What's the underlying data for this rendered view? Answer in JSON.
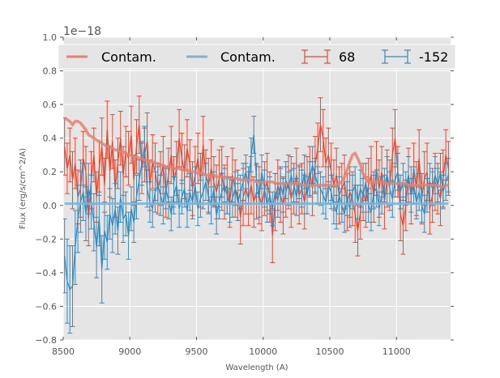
{
  "chart_data": {
    "type": "line",
    "title": "",
    "xlabel": "Wavelength (A)",
    "ylabel": "Flux (erg/s/cm^2/A)",
    "y_offset_label": "1e−18",
    "xlim": [
      8500,
      11406
    ],
    "ylim": [
      -0.8,
      1.0
    ],
    "x_ticks": [
      8500,
      9000,
      9500,
      10000,
      10500,
      11000
    ],
    "x_tick_labels": [
      "8500",
      "9000",
      "9500",
      "10000",
      "10500",
      "11000"
    ],
    "y_ticks": [
      -0.8,
      -0.6,
      -0.4,
      -0.2,
      0.0,
      0.2,
      0.4,
      0.6,
      0.8,
      1.0
    ],
    "y_tick_labels": [
      "−0.8",
      "−0.6",
      "−0.4",
      "−0.2",
      "0.0",
      "0.2",
      "0.4",
      "0.6",
      "0.8",
      "1.0"
    ],
    "grid": true,
    "legend_position": "top",
    "legend": [
      {
        "label": "Contam.",
        "kind": "line",
        "color": "#e8806e"
      },
      {
        "label": "Contam.",
        "kind": "line",
        "color": "#7eb3d6"
      },
      {
        "label": "68",
        "kind": "errorbar",
        "color": "#e24a33"
      },
      {
        "label": "-152",
        "kind": "errorbar",
        "color": "#348abd"
      }
    ],
    "x_start": 8510,
    "x_step": 20,
    "series": [
      {
        "name": "Contam.",
        "kind": "contam",
        "color": "#e8806e",
        "values": [
          0.52,
          0.51,
          0.5,
          0.48,
          0.5,
          0.5,
          0.49,
          0.47,
          0.45,
          0.42,
          0.41,
          0.4,
          0.39,
          0.38,
          0.37,
          0.36,
          0.35,
          0.35,
          0.34,
          0.33,
          0.33,
          0.32,
          0.32,
          0.31,
          0.3,
          0.3,
          0.29,
          0.29,
          0.28,
          0.28,
          0.27,
          0.27,
          0.26,
          0.26,
          0.25,
          0.25,
          0.24,
          0.24,
          0.23,
          0.23,
          0.23,
          0.22,
          0.22,
          0.22,
          0.21,
          0.21,
          0.21,
          0.2,
          0.2,
          0.2,
          0.19,
          0.19,
          0.19,
          0.18,
          0.18,
          0.18,
          0.18,
          0.17,
          0.17,
          0.17,
          0.17,
          0.16,
          0.16,
          0.16,
          0.16,
          0.16,
          0.15,
          0.15,
          0.15,
          0.15,
          0.15,
          0.15,
          0.14,
          0.14,
          0.14,
          0.14,
          0.14,
          0.14,
          0.14,
          0.13,
          0.13,
          0.13,
          0.13,
          0.13,
          0.13,
          0.13,
          0.13,
          0.13,
          0.13,
          0.12,
          0.12,
          0.12,
          0.12,
          0.12,
          0.12,
          0.12,
          0.12,
          0.12,
          0.12,
          0.12,
          0.12,
          0.12,
          0.12,
          0.13,
          0.14,
          0.17,
          0.21,
          0.26,
          0.3,
          0.31,
          0.28,
          0.24,
          0.19,
          0.16,
          0.14,
          0.14,
          0.14,
          0.14,
          0.14,
          0.14,
          0.14,
          0.13,
          0.13,
          0.13,
          0.13,
          0.13,
          0.13,
          0.13,
          0.13,
          0.12,
          0.12,
          0.12,
          0.12,
          0.12,
          0.12,
          0.12,
          0.12,
          0.12,
          0.12,
          0.12,
          0.12,
          0.11,
          0.11,
          0.12,
          0.12
        ]
      },
      {
        "name": "Contam.",
        "kind": "contam",
        "color": "#7eb3d6",
        "values": [
          0.01,
          0.01,
          0.01,
          0.01,
          0.01,
          0.01,
          0.01,
          0.01,
          0.01,
          0.01,
          0.01,
          0.01,
          0.01,
          0.01,
          0.01,
          0.01,
          0.01,
          0.01,
          0.01,
          0.01,
          0.01,
          0.01,
          0.01,
          0.01,
          0.01,
          0.01,
          0.01,
          0.01,
          0.01,
          0.01,
          0.01,
          0.01,
          0.01,
          0.01,
          0.01,
          0.01,
          0.01,
          0.01,
          0.01,
          0.01,
          0.01,
          0.01,
          0.01,
          0.01,
          0.01,
          0.01,
          0.01,
          0.01,
          0.01,
          0.01,
          0.01,
          0.01,
          0.01,
          0.01,
          0.01,
          0.01,
          0.01,
          0.01,
          0.01,
          0.01,
          0.01,
          0.01,
          0.01,
          0.01,
          0.01,
          0.01,
          0.01,
          0.01,
          0.01,
          0.01,
          0.01,
          0.01,
          0.01,
          0.01,
          0.01,
          0.01,
          0.01,
          0.01,
          0.01,
          0.01,
          0.01,
          0.01,
          0.01,
          0.01,
          0.01,
          0.01,
          0.01,
          0.01,
          0.01,
          0.01,
          0.01,
          0.01,
          0.01,
          0.01,
          0.01,
          0.01,
          0.01,
          0.01,
          0.01,
          0.01,
          0.01,
          0.01,
          0.01,
          0.01,
          0.01,
          0.01,
          0.01,
          0.01,
          0.01,
          0.01,
          0.01,
          0.01,
          0.01,
          0.01,
          0.01,
          0.01,
          0.01,
          0.01,
          0.01,
          0.01,
          0.01,
          0.01,
          0.01,
          0.01,
          0.01,
          0.01,
          0.01,
          0.01,
          0.01,
          0.01,
          0.01,
          0.01,
          0.01,
          0.01,
          0.01,
          0.01,
          0.01,
          0.01,
          0.01,
          0.01,
          0.01,
          0.01,
          0.01,
          0.01,
          0.01
        ]
      },
      {
        "name": "68",
        "kind": "errorbar",
        "color": "#e24a33",
        "values": [
          0.35,
          0.22,
          0.3,
          0.15,
          0.25,
          0.05,
          0.1,
          0.28,
          0.2,
          -0.08,
          0.15,
          0.3,
          0.05,
          0.22,
          0.35,
          0.12,
          0.45,
          0.2,
          0.38,
          0.1,
          0.25,
          0.4,
          0.18,
          0.32,
          0.28,
          0.42,
          0.15,
          0.35,
          0.48,
          0.22,
          0.3,
          0.38,
          0.12,
          0.26,
          0.2,
          0.1,
          0.16,
          0.24,
          0.08,
          0.18,
          0.3,
          0.14,
          0.22,
          0.4,
          0.28,
          0.2,
          0.34,
          0.24,
          0.1,
          0.18,
          0.28,
          0.15,
          0.36,
          0.18,
          0.12,
          0.22,
          0.14,
          0.08,
          0.16,
          0.2,
          0.08,
          0.12,
          0.02,
          0.18,
          0.1,
          0.06,
          -0.07,
          0.05,
          0.1,
          0.04,
          0.12,
          0.02,
          0.08,
          0.06,
          0.0,
          0.1,
          0.14,
          0.05,
          -0.18,
          0.02,
          0.12,
          0.06,
          0.0,
          0.08,
          0.14,
          0.04,
          0.1,
          0.18,
          0.06,
          0.1,
          0.02,
          0.12,
          0.2,
          0.1,
          0.24,
          0.34,
          0.48,
          0.4,
          0.25,
          0.3,
          0.2,
          0.12,
          0.18,
          0.06,
          0.1,
          0.14,
          0.02,
          0.08,
          0.04,
          -0.05,
          -0.15,
          -0.04,
          0.08,
          0.02,
          0.12,
          0.18,
          0.05,
          0.22,
          0.1,
          0.2,
          0.02,
          0.16,
          0.12,
          0.3,
          0.4,
          0.2,
          -0.05,
          -0.12,
          0.0,
          0.18,
          0.06,
          0.22,
          0.1,
          0.28,
          0.04,
          0.16,
          0.2,
          -0.02,
          0.06,
          0.14,
          0.1,
          0.04,
          0.16,
          0.3,
          0.22
        ],
        "errors": [
          0.17,
          0.15,
          0.16,
          0.17,
          0.15,
          0.16,
          0.17,
          0.16,
          0.15,
          0.16,
          0.17,
          0.16,
          0.15,
          0.16,
          0.17,
          0.16,
          0.17,
          0.15,
          0.16,
          0.17,
          0.15,
          0.16,
          0.17,
          0.15,
          0.16,
          0.17,
          0.15,
          0.16,
          0.17,
          0.15,
          0.16,
          0.17,
          0.15,
          0.16,
          0.17,
          0.15,
          0.16,
          0.17,
          0.15,
          0.16,
          0.17,
          0.15,
          0.16,
          0.17,
          0.15,
          0.16,
          0.17,
          0.15,
          0.16,
          0.17,
          0.15,
          0.16,
          0.17,
          0.15,
          0.16,
          0.17,
          0.15,
          0.16,
          0.17,
          0.15,
          0.16,
          0.17,
          0.15,
          0.16,
          0.17,
          0.15,
          0.16,
          0.17,
          0.15,
          0.16,
          0.17,
          0.15,
          0.16,
          0.17,
          0.15,
          0.16,
          0.17,
          0.15,
          0.16,
          0.17,
          0.15,
          0.16,
          0.17,
          0.15,
          0.16,
          0.17,
          0.15,
          0.16,
          0.17,
          0.15,
          0.16,
          0.17,
          0.15,
          0.16,
          0.17,
          0.15,
          0.16,
          0.17,
          0.15,
          0.16,
          0.17,
          0.15,
          0.16,
          0.17,
          0.15,
          0.16,
          0.17,
          0.15,
          0.16,
          0.17,
          0.15,
          0.16,
          0.17,
          0.15,
          0.16,
          0.17,
          0.15,
          0.16,
          0.17,
          0.15,
          0.16,
          0.17,
          0.15,
          0.16,
          0.17,
          0.15,
          0.16,
          0.17,
          0.15,
          0.16,
          0.17,
          0.15,
          0.16,
          0.17,
          0.15,
          0.16,
          0.17,
          0.15,
          0.16,
          0.17,
          0.15,
          0.16,
          0.17,
          0.15,
          0.16,
          0.17
        ]
      },
      {
        "name": "-152",
        "kind": "errorbar",
        "color": "#348abd",
        "values": [
          -0.3,
          -0.45,
          -0.5,
          -0.48,
          -0.25,
          -0.08,
          0.02,
          0.08,
          -0.05,
          0.1,
          0.02,
          -0.1,
          -0.25,
          -0.08,
          -0.38,
          -0.15,
          -0.22,
          -0.05,
          -0.12,
          -0.02,
          -0.15,
          0.05,
          -0.08,
          -0.05,
          -0.18,
          -0.02,
          -0.1,
          0.05,
          0.15,
          0.25,
          0.35,
          0.1,
          0.02,
          -0.02,
          0.08,
          0.12,
          0.06,
          0.0,
          0.1,
          0.03,
          -0.05,
          0.06,
          0.12,
          -0.02,
          0.05,
          0.1,
          -0.03,
          0.08,
          0.02,
          0.12,
          -0.02,
          0.04,
          0.08,
          0.14,
          0.05,
          0.0,
          0.1,
          -0.06,
          0.02,
          0.08,
          0.12,
          0.06,
          0.0,
          0.04,
          0.1,
          0.02,
          0.08,
          0.14,
          0.2,
          0.12,
          0.3,
          0.42,
          0.15,
          0.04,
          0.2,
          0.1,
          0.0,
          0.06,
          -0.02,
          0.08,
          0.03,
          0.12,
          0.06,
          0.15,
          0.1,
          0.18,
          0.12,
          0.05,
          0.14,
          0.1,
          0.2,
          0.06,
          0.16,
          0.24,
          0.18,
          0.12,
          0.1,
          0.06,
          0.02,
          0.12,
          0.08,
          0.0,
          -0.04,
          0.06,
          0.0,
          -0.05,
          0.04,
          -0.02,
          0.08,
          0.12,
          0.02,
          0.1,
          0.06,
          0.14,
          0.0,
          -0.04,
          0.08,
          0.1,
          -0.02,
          0.06,
          0.12,
          0.18,
          0.1,
          0.04,
          0.15,
          0.2,
          0.08,
          0.14,
          0.1,
          0.18,
          0.06,
          0.12,
          0.02,
          0.08,
          0.0,
          -0.05,
          0.06,
          0.14,
          0.1,
          0.18,
          0.12,
          0.2,
          0.08,
          0.14,
          0.18
        ],
        "errors": [
          0.22,
          0.25,
          0.26,
          0.24,
          0.22,
          0.2,
          0.18,
          0.17,
          0.16,
          0.15,
          0.16,
          0.17,
          0.18,
          0.16,
          0.2,
          0.17,
          0.16,
          0.15,
          0.16,
          0.15,
          0.14,
          0.15,
          0.14,
          0.13,
          0.14,
          0.13,
          0.12,
          0.13,
          0.12,
          0.13,
          0.12,
          0.11,
          0.12,
          0.11,
          0.12,
          0.11,
          0.12,
          0.11,
          0.12,
          0.11,
          0.1,
          0.11,
          0.1,
          0.11,
          0.1,
          0.11,
          0.1,
          0.11,
          0.1,
          0.11,
          0.1,
          0.11,
          0.1,
          0.11,
          0.1,
          0.11,
          0.1,
          0.11,
          0.1,
          0.11,
          0.1,
          0.11,
          0.1,
          0.11,
          0.1,
          0.11,
          0.1,
          0.11,
          0.1,
          0.11,
          0.1,
          0.11,
          0.1,
          0.11,
          0.1,
          0.11,
          0.1,
          0.11,
          0.1,
          0.11,
          0.1,
          0.11,
          0.1,
          0.11,
          0.1,
          0.11,
          0.1,
          0.11,
          0.1,
          0.11,
          0.1,
          0.11,
          0.1,
          0.11,
          0.1,
          0.11,
          0.1,
          0.11,
          0.1,
          0.11,
          0.1,
          0.11,
          0.1,
          0.11,
          0.1,
          0.11,
          0.1,
          0.11,
          0.1,
          0.11,
          0.1,
          0.11,
          0.1,
          0.11,
          0.1,
          0.11,
          0.1,
          0.11,
          0.1,
          0.11,
          0.1,
          0.11,
          0.1,
          0.11,
          0.1,
          0.11,
          0.1,
          0.11,
          0.1,
          0.11,
          0.1,
          0.11,
          0.1,
          0.11,
          0.1,
          0.11,
          0.1,
          0.11,
          0.1,
          0.11,
          0.1,
          0.11,
          0.1,
          0.11,
          0.1
        ]
      }
    ]
  }
}
